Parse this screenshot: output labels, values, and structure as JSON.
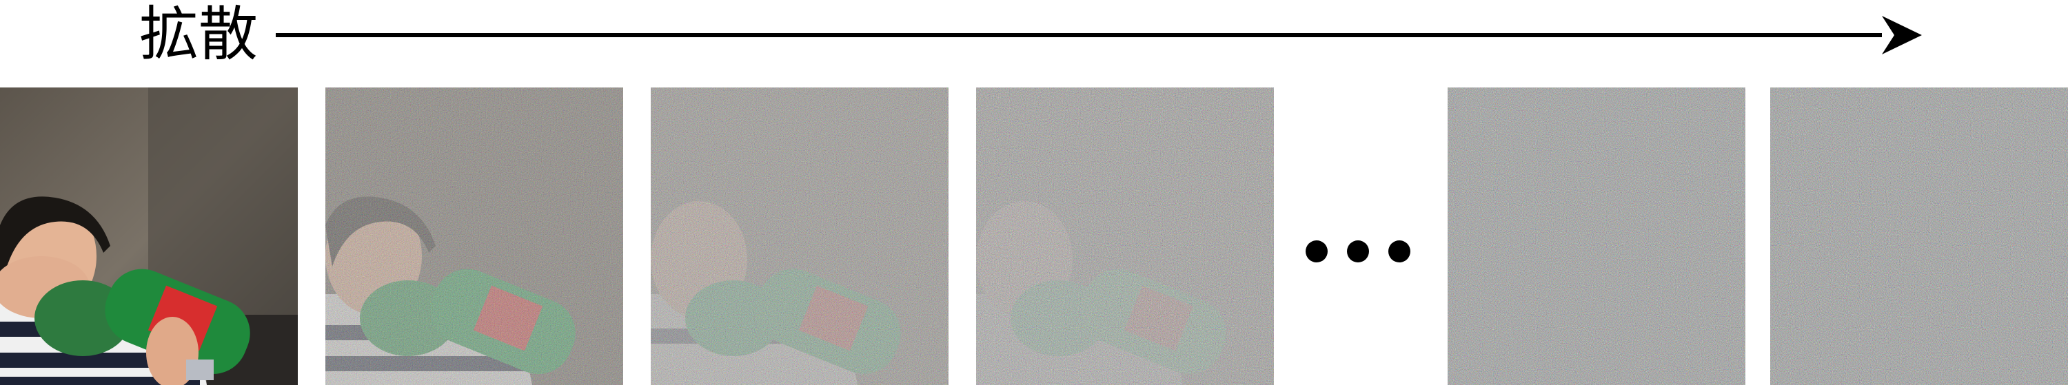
{
  "diagram": {
    "label": "拡散",
    "frames": [
      {
        "id": "original"
      },
      {
        "id": "noisy-1",
        "noise_level": 0.45
      },
      {
        "id": "noisy-2",
        "noise_level": 0.65
      },
      {
        "id": "noisy-3",
        "noise_level": 0.78
      },
      {
        "id": "noise-1",
        "noise_level": 1.0
      },
      {
        "id": "noise-2",
        "noise_level": 1.0
      }
    ]
  }
}
